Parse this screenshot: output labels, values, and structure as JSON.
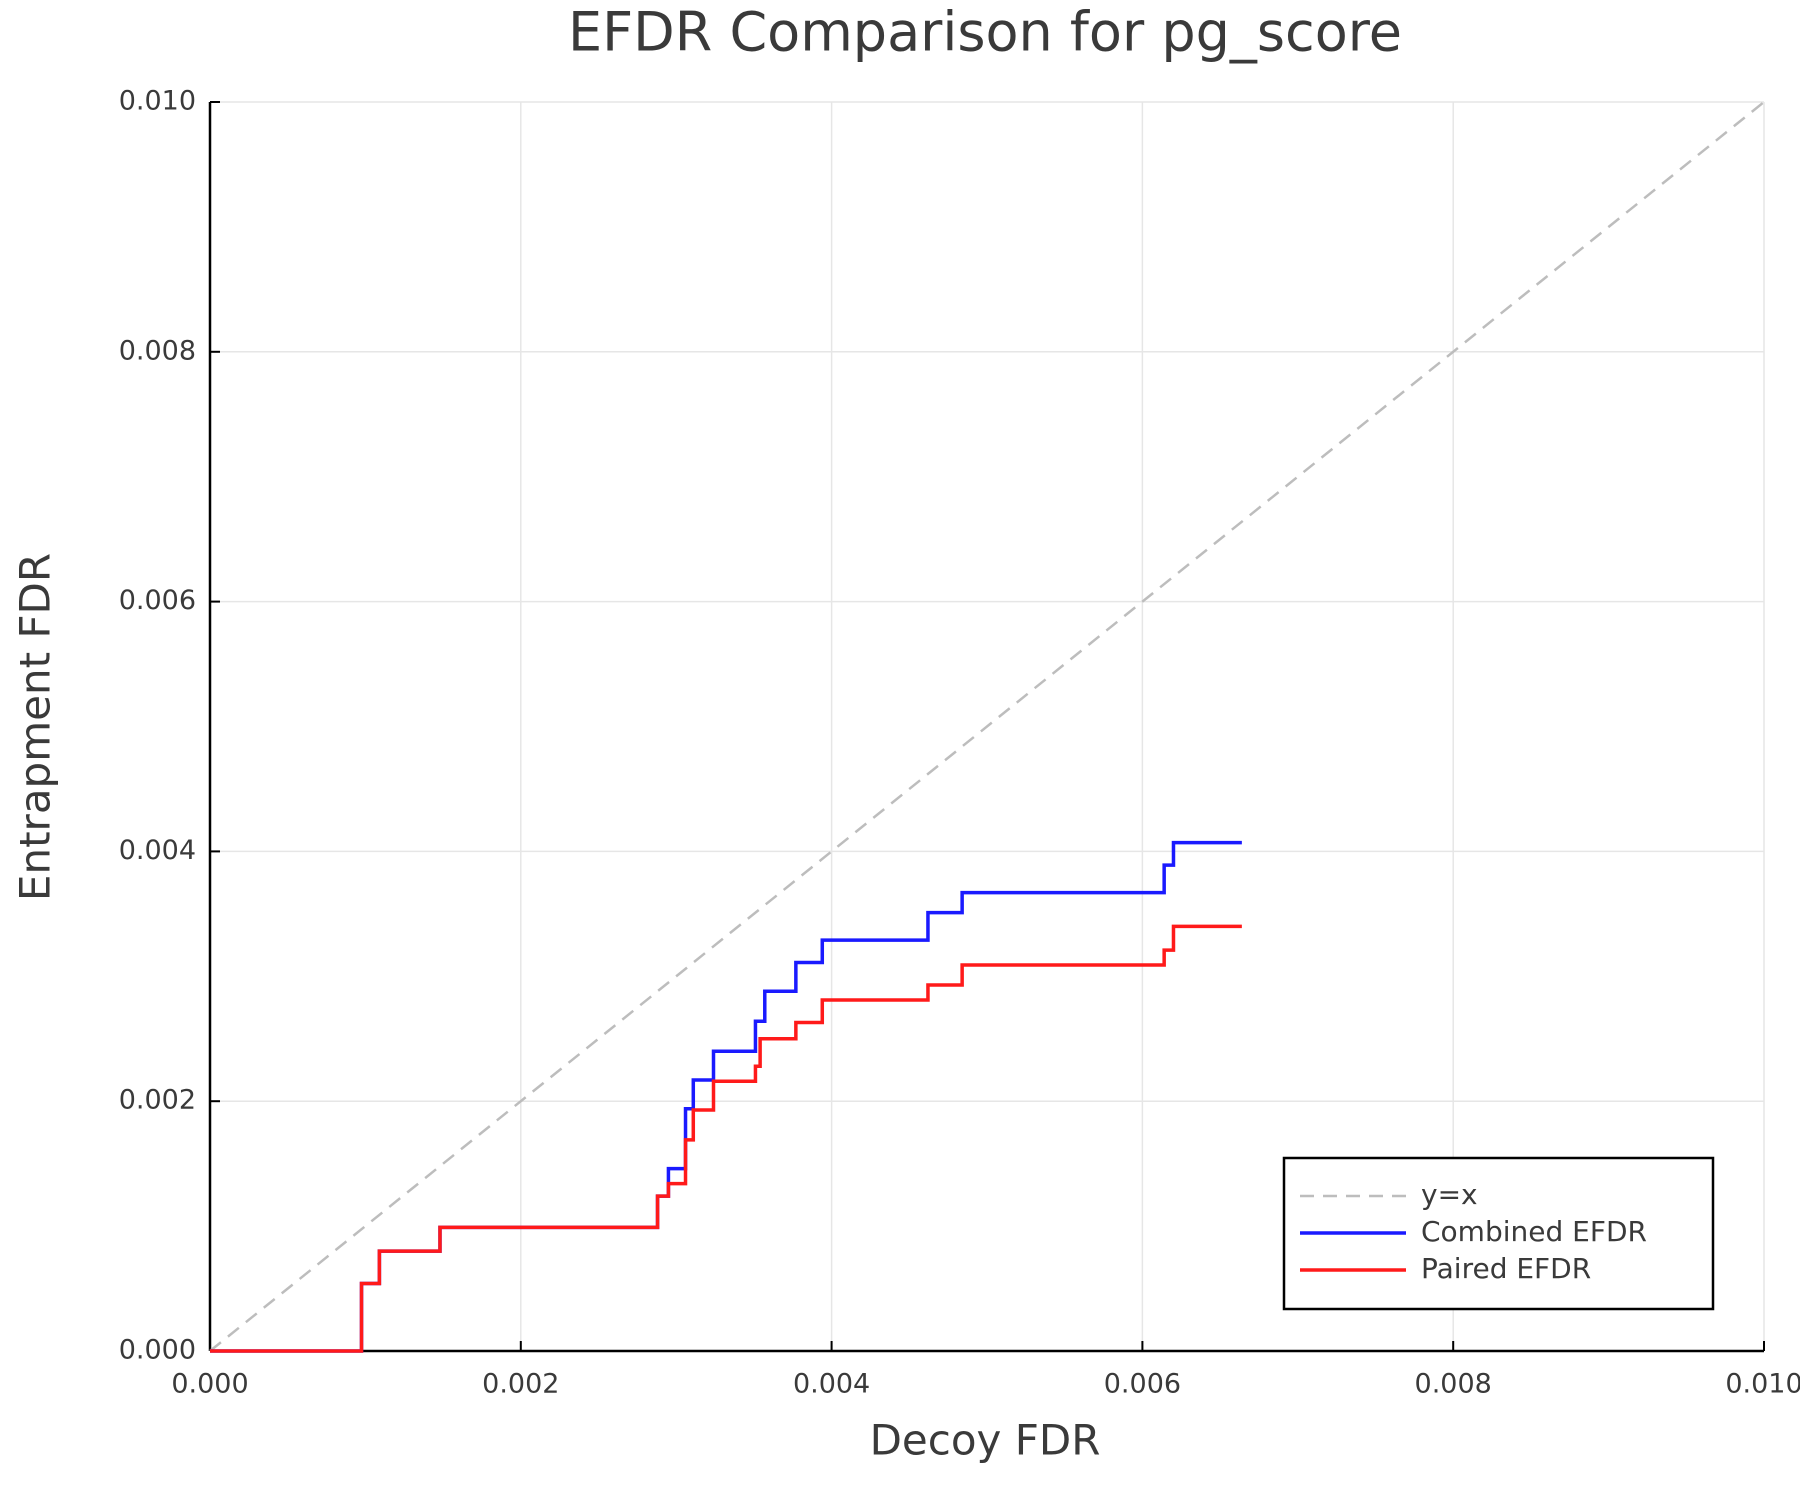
{
  "chart_data": {
    "type": "line",
    "title": "EFDR Comparison for pg_score",
    "x_label": "Decoy FDR",
    "y_label": "Entrapment FDR",
    "xlim": [
      0,
      0.01
    ],
    "ylim": [
      0,
      0.01
    ],
    "xticks": [
      {
        "value": 0,
        "label": "0.000"
      },
      {
        "value": 0.002,
        "label": "0.002"
      },
      {
        "value": 0.004,
        "label": "0.004"
      },
      {
        "value": 0.006,
        "label": "0.006"
      },
      {
        "value": 0.008,
        "label": "0.008"
      },
      {
        "value": 0.01,
        "label": "0.010"
      }
    ],
    "yticks": [
      {
        "value": 0,
        "label": "0.000"
      },
      {
        "value": 0.002,
        "label": "0.002"
      },
      {
        "value": 0.004,
        "label": "0.004"
      },
      {
        "value": 0.006,
        "label": "0.006"
      },
      {
        "value": 0.008,
        "label": "0.008"
      },
      {
        "value": 0.01,
        "label": "0.010"
      }
    ],
    "grid": true,
    "legend": "lower right",
    "series": [
      {
        "name": "y=x",
        "color": "#bdbdbd",
        "dashed": true,
        "x": [
          0,
          0.01
        ],
        "values": [
          0,
          0.01
        ]
      },
      {
        "name": "Combined EFDR",
        "color": "#1a1aff",
        "dashed": false,
        "x": [
          0,
          0.000975,
          0.000975,
          0.00109,
          0.00109,
          0.00148,
          0.00148,
          0.00288,
          0.00288,
          0.00295,
          0.00295,
          0.00306,
          0.00306,
          0.00311,
          0.00311,
          0.00324,
          0.00324,
          0.00351,
          0.00351,
          0.00357,
          0.00357,
          0.00377,
          0.00377,
          0.00394,
          0.00394,
          0.00462,
          0.00462,
          0.00484,
          0.00484,
          0.00614,
          0.00614,
          0.0062,
          0.0062,
          0.00664
        ],
        "values": [
          0,
          0,
          0.00054,
          0.00054,
          0.0008,
          0.0008,
          0.00099,
          0.00099,
          0.00124,
          0.00124,
          0.00146,
          0.00146,
          0.00194,
          0.00194,
          0.00217,
          0.00217,
          0.0024,
          0.0024,
          0.00264,
          0.00264,
          0.00288,
          0.00288,
          0.00311,
          0.00311,
          0.00329,
          0.00329,
          0.00351,
          0.00351,
          0.00367,
          0.00367,
          0.00389,
          0.00389,
          0.00407,
          0.00407
        ]
      },
      {
        "name": "Paired EFDR",
        "color": "#ff1a1a",
        "dashed": false,
        "x": [
          0,
          0.000975,
          0.000975,
          0.00109,
          0.00109,
          0.00148,
          0.00148,
          0.00288,
          0.00288,
          0.00295,
          0.00295,
          0.00306,
          0.00306,
          0.00311,
          0.00311,
          0.00324,
          0.00324,
          0.00351,
          0.00351,
          0.00354,
          0.00354,
          0.00377,
          0.00377,
          0.00394,
          0.00394,
          0.00462,
          0.00462,
          0.00484,
          0.00484,
          0.00614,
          0.00614,
          0.0062,
          0.0062,
          0.00664
        ],
        "values": [
          0,
          0,
          0.00054,
          0.00054,
          0.0008,
          0.0008,
          0.00099,
          0.00099,
          0.00124,
          0.00124,
          0.00134,
          0.00134,
          0.00169,
          0.00169,
          0.00193,
          0.00193,
          0.00216,
          0.00216,
          0.00228,
          0.00228,
          0.0025,
          0.0025,
          0.00263,
          0.00263,
          0.00281,
          0.00281,
          0.00293,
          0.00293,
          0.00309,
          0.00309,
          0.00321,
          0.00321,
          0.0034,
          0.0034
        ]
      }
    ]
  }
}
